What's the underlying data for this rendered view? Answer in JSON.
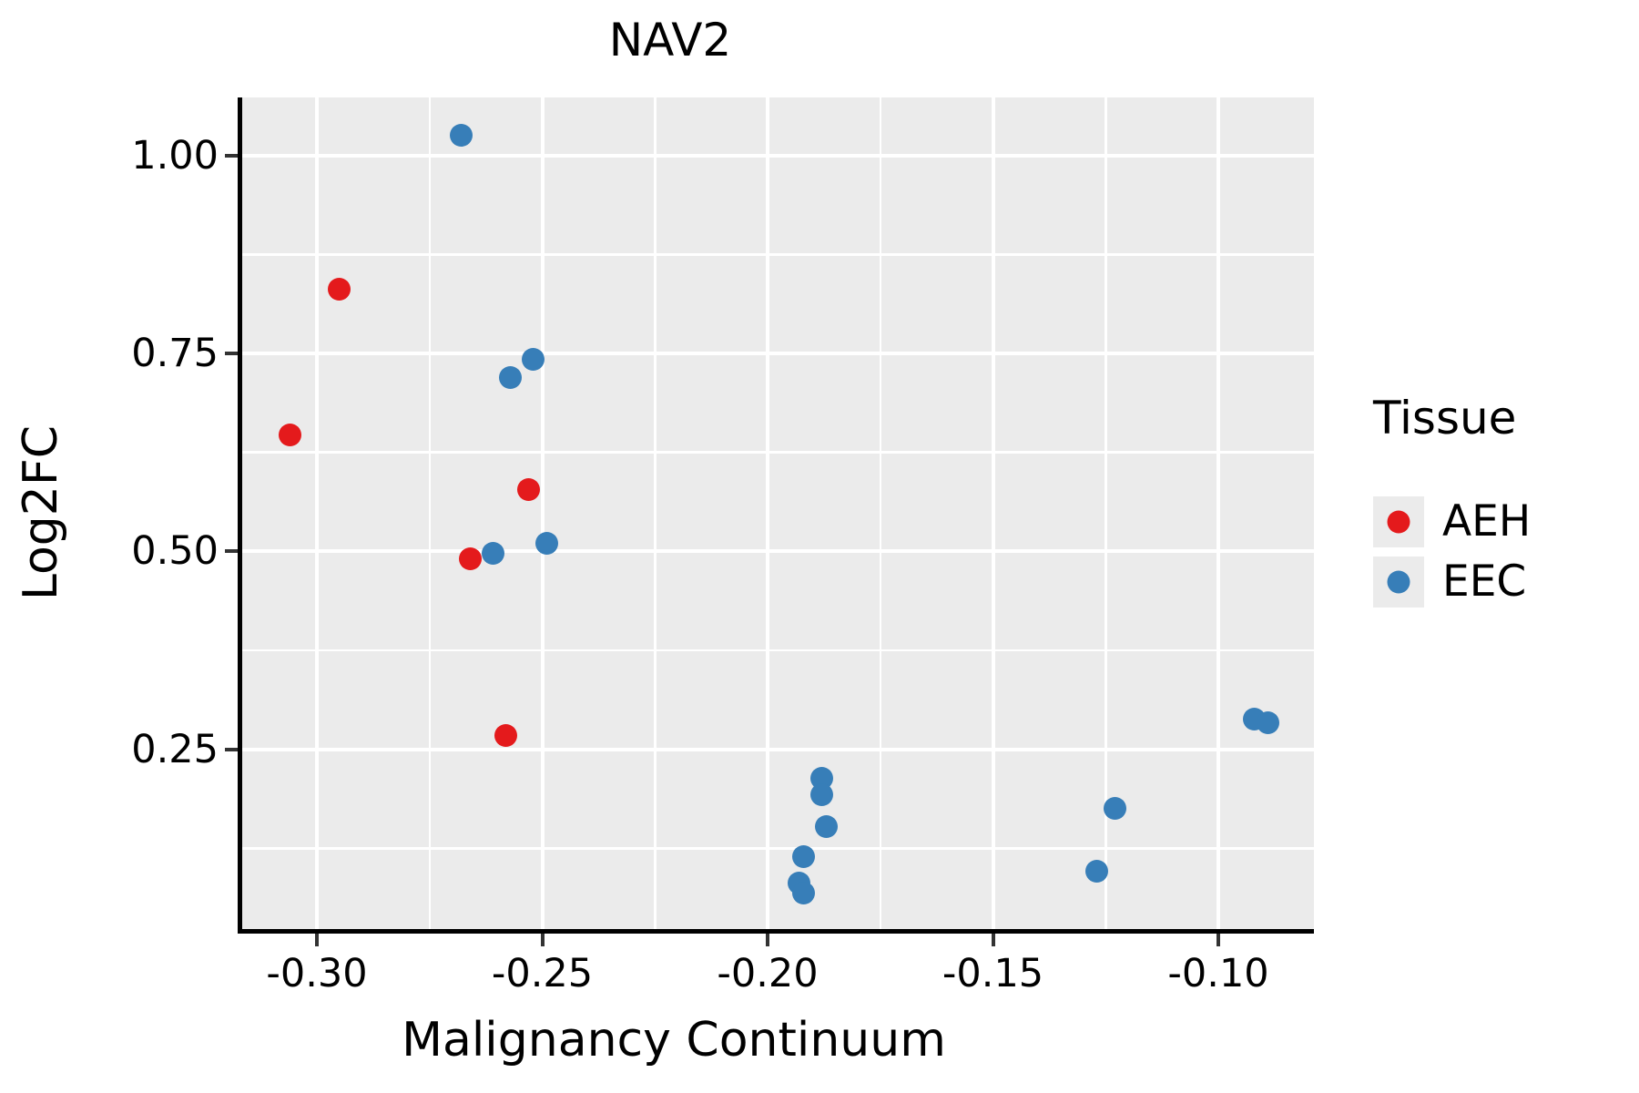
{
  "colors": {
    "panel_background": "#EBEBEB",
    "grid": "#FFFFFF",
    "axis_line": "#000000",
    "tick_mark": "#333333",
    "text": "#000000",
    "aeh": "#E41A1C",
    "eec": "#377EB8"
  },
  "chart_data": {
    "type": "scatter",
    "title": "NAV2",
    "xlabel": "Malignancy Continuum",
    "ylabel": "Log2FC",
    "xlim": [
      -0.31657,
      -0.0788
    ],
    "ylim": [
      0.0229,
      1.0733
    ],
    "grid": true,
    "x_ticks": {
      "values": [
        -0.3,
        -0.25,
        -0.2,
        -0.15,
        -0.1
      ],
      "labels": [
        "-0.30",
        "-0.25",
        "-0.20",
        "-0.15",
        "-0.10"
      ]
    },
    "y_ticks": {
      "values": [
        0.25,
        0.5,
        0.75,
        1.0
      ],
      "labels": [
        "0.25",
        "0.50",
        "0.75",
        "1.00"
      ]
    },
    "x_minor_gridlines": [
      -0.275,
      -0.225,
      -0.175,
      -0.125
    ],
    "y_minor_gridlines": [
      0.125,
      0.375,
      0.625,
      0.875
    ],
    "legend": {
      "title": "Tissue",
      "position": "right",
      "entries": [
        {
          "label": "AEH",
          "color": "#E41A1C"
        },
        {
          "label": "EEC",
          "color": "#377EB8"
        }
      ]
    },
    "series": [
      {
        "name": "AEH",
        "color": "#E41A1C",
        "points": [
          [
            -0.306,
            0.647
          ],
          [
            -0.295,
            0.831
          ],
          [
            -0.266,
            0.491
          ],
          [
            -0.258,
            0.267
          ],
          [
            -0.253,
            0.578
          ]
        ]
      },
      {
        "name": "EEC",
        "color": "#377EB8",
        "points": [
          [
            -0.268,
            1.025
          ],
          [
            -0.257,
            0.72
          ],
          [
            -0.252,
            0.742
          ],
          [
            -0.261,
            0.498
          ],
          [
            -0.249,
            0.51
          ],
          [
            -0.188,
            0.213
          ],
          [
            -0.188,
            0.193
          ],
          [
            -0.187,
            0.152
          ],
          [
            -0.192,
            0.114
          ],
          [
            -0.193,
            0.081
          ],
          [
            -0.192,
            0.068
          ],
          [
            -0.127,
            0.096
          ],
          [
            -0.123,
            0.175
          ],
          [
            -0.092,
            0.288
          ],
          [
            -0.089,
            0.283
          ]
        ]
      }
    ]
  }
}
